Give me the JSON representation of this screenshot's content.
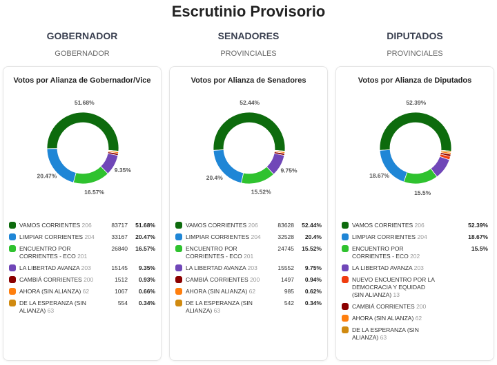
{
  "title": "Escrutinio Provisorio",
  "columns": [
    {
      "header": "GOBERNADOR",
      "subheader": "GOBERNADOR",
      "card_title": "Votos por Alianza de Gobernador/Vice",
      "rows": [
        {
          "label": "VAMOS CORRIENTES",
          "num": "206",
          "votes": "83717",
          "pct": "51.68%",
          "value": 51.68,
          "color": "#0d6b0d"
        },
        {
          "label": "LIMPIAR CORRIENTES",
          "num": "204",
          "votes": "33167",
          "pct": "20.47%",
          "value": 20.47,
          "color": "#1f86d6"
        },
        {
          "label": "ENCUENTRO POR CORRIENTES - ECO",
          "num": "201",
          "votes": "26840",
          "pct": "16.57%",
          "value": 16.57,
          "color": "#2fc22f"
        },
        {
          "label": "LA LIBERTAD AVANZA",
          "num": "203",
          "votes": "15145",
          "pct": "9.35%",
          "value": 9.35,
          "color": "#7047b8"
        },
        {
          "label": "CAMBIÁ CORRIENTES",
          "num": "200",
          "votes": "1512",
          "pct": "0.93%",
          "value": 0.93,
          "color": "#8b0000"
        },
        {
          "label": "AHORA (SIN ALIANZA)",
          "num": "62",
          "votes": "1067",
          "pct": "0.66%",
          "value": 0.66,
          "color": "#ff7f0e"
        },
        {
          "label": "DE LA ESPERANZA (SIN ALIANZA)",
          "num": "63",
          "votes": "554",
          "pct": "0.34%",
          "value": 0.34,
          "color": "#d08a10"
        }
      ],
      "slice_labels": [
        "51.68%",
        "20.47%",
        "16.57%",
        "9.35%"
      ]
    },
    {
      "header": "SENADORES",
      "subheader": "PROVINCIALES",
      "card_title": "Votos por Alianza de Senadores",
      "rows": [
        {
          "label": "VAMOS CORRIENTES",
          "num": "206",
          "votes": "83628",
          "pct": "52.44%",
          "value": 52.44,
          "color": "#0d6b0d"
        },
        {
          "label": "LIMPIAR CORRIENTES",
          "num": "204",
          "votes": "32528",
          "pct": "20.4%",
          "value": 20.4,
          "color": "#1f86d6"
        },
        {
          "label": "ENCUENTRO POR CORRIENTES - ECO",
          "num": "201",
          "votes": "24745",
          "pct": "15.52%",
          "value": 15.52,
          "color": "#2fc22f"
        },
        {
          "label": "LA LIBERTAD AVANZA",
          "num": "203",
          "votes": "15552",
          "pct": "9.75%",
          "value": 9.75,
          "color": "#7047b8"
        },
        {
          "label": "CAMBIÁ CORRIENTES",
          "num": "200",
          "votes": "1497",
          "pct": "0.94%",
          "value": 0.94,
          "color": "#8b0000"
        },
        {
          "label": "AHORA (SIN ALIANZA)",
          "num": "62",
          "votes": "985",
          "pct": "0.62%",
          "value": 0.62,
          "color": "#ff7f0e"
        },
        {
          "label": "DE LA ESPERANZA (SIN ALIANZA)",
          "num": "63",
          "votes": "542",
          "pct": "0.34%",
          "value": 0.34,
          "color": "#d08a10"
        }
      ],
      "slice_labels": [
        "52.44%",
        "20.4%",
        "15.52%",
        "9.75%"
      ]
    },
    {
      "header": "DIPUTADOS",
      "subheader": "PROVINCIALES",
      "card_title": "Votos por Alianza de Diputados",
      "rows": [
        {
          "label": "VAMOS CORRIENTES",
          "num": "206",
          "votes": "",
          "pct": "52.39%",
          "value": 52.39,
          "color": "#0d6b0d"
        },
        {
          "label": "LIMPIAR CORRIENTES",
          "num": "204",
          "votes": "",
          "pct": "18.67%",
          "value": 18.67,
          "color": "#1f86d6"
        },
        {
          "label": "ENCUENTRO POR CORRIENTES - ECO",
          "num": "202",
          "votes": "",
          "pct": "15.5%",
          "value": 15.5,
          "color": "#2fc22f"
        },
        {
          "label": "LA LIBERTAD AVANZA",
          "num": "203",
          "votes": "",
          "pct": "",
          "value": 9.5,
          "color": "#7047b8"
        },
        {
          "label": "NUEVO ENCUENTRO POR LA DEMOCRACIA Y EQUIDAD (SIN ALIANZA)",
          "num": "13",
          "votes": "",
          "pct": "",
          "value": 1.5,
          "color": "#f03c0f",
          "wrap": true
        },
        {
          "label": "CAMBIÁ CORRIENTES",
          "num": "200",
          "votes": "",
          "pct": "",
          "value": 1.0,
          "color": "#8b0000"
        },
        {
          "label": "AHORA (SIN ALIANZA)",
          "num": "62",
          "votes": "",
          "pct": "",
          "value": 0.8,
          "color": "#ff7f0e"
        },
        {
          "label": "DE LA ESPERANZA (SIN ALIANZA)",
          "num": "63",
          "votes": "",
          "pct": "",
          "value": 0.6,
          "color": "#d08a10"
        }
      ],
      "slice_labels": [
        "52.39%",
        "18.67%",
        "15.5%",
        ""
      ]
    }
  ]
}
